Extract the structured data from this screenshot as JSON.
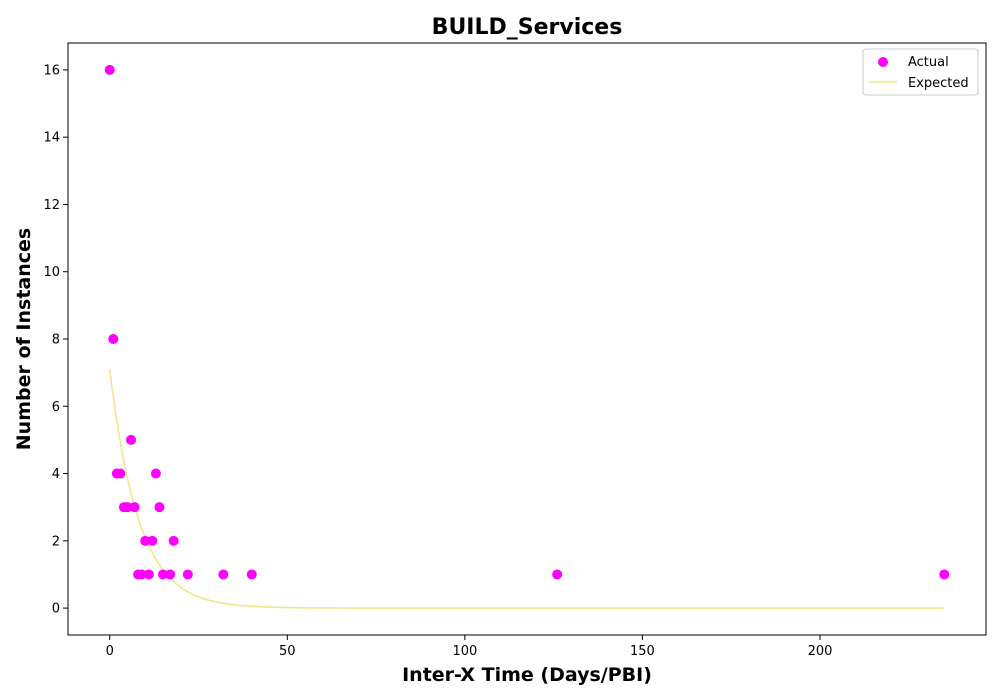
{
  "chart_data": {
    "type": "scatter",
    "title": "BUILD_Services",
    "xlabel": "Inter-X Time (Days/PBI)",
    "ylabel": "Number of Instances",
    "xlim": [
      -11.75,
      246.75
    ],
    "ylim": [
      -0.8,
      16.8
    ],
    "xticks": [
      0,
      50,
      100,
      150,
      200
    ],
    "yticks": [
      0,
      2,
      4,
      6,
      8,
      10,
      12,
      14,
      16
    ],
    "grid": false,
    "legend_position": "top-right",
    "series": [
      {
        "name": "Actual",
        "kind": "scatter",
        "color": "#ff00ff",
        "points": [
          [
            0,
            16
          ],
          [
            1,
            8
          ],
          [
            2,
            4
          ],
          [
            3,
            4
          ],
          [
            4,
            3
          ],
          [
            5,
            3
          ],
          [
            6,
            5
          ],
          [
            7,
            3
          ],
          [
            8,
            1
          ],
          [
            9,
            1
          ],
          [
            10,
            2
          ],
          [
            11,
            1
          ],
          [
            12,
            2
          ],
          [
            13,
            4
          ],
          [
            14,
            3
          ],
          [
            15,
            1
          ],
          [
            17,
            1
          ],
          [
            18,
            2
          ],
          [
            22,
            1
          ],
          [
            32,
            1
          ],
          [
            40,
            1
          ],
          [
            126,
            1
          ],
          [
            235,
            1
          ]
        ]
      },
      {
        "name": "Expected",
        "kind": "line",
        "color": "#f0e68c",
        "function": "y = 7.1 * exp(-0.122 * x)",
        "x_range": [
          0,
          235
        ]
      }
    ]
  }
}
